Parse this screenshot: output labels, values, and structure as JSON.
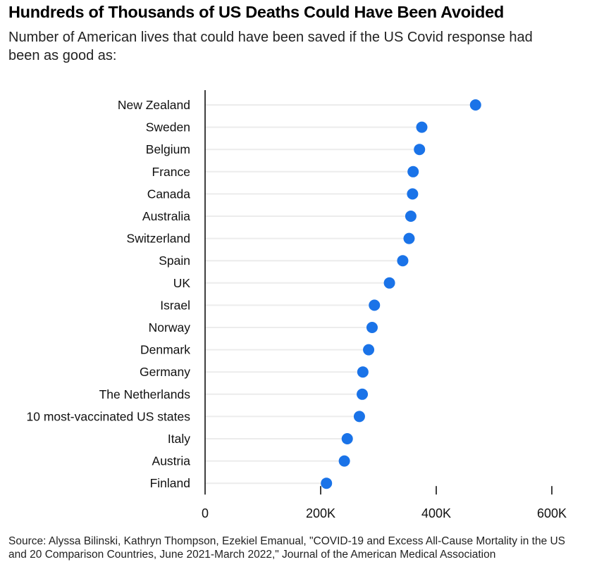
{
  "title": "Hundreds of Thousands of US Deaths Could Have Been Avoided",
  "subtitle": "Number of American lives that could have been saved if the US Covid response had been as good as:",
  "source": "Source: Alyssa Bilinski, Kathryn Thompson, Ezekiel Emanual, \"COVID-19 and Excess All-Cause Mortality in the US and 20 Comparison Countries, June 2021-March 2022,\" Journal of the American Medical Association",
  "colors": {
    "dot": "#1a73e8",
    "gridline": "#ececec",
    "axis": "#000000"
  },
  "chart_data": {
    "type": "scatter",
    "orientation": "horizontal-dot",
    "title": "Hundreds of Thousands of US Deaths Could Have Been Avoided",
    "xlabel": "",
    "ylabel": "",
    "xlim": [
      0,
      600000
    ],
    "x_ticks": [
      0,
      200000,
      400000,
      600000
    ],
    "x_tick_labels": [
      "0",
      "200K",
      "400K",
      "600K"
    ],
    "categories": [
      "New Zealand",
      "Sweden",
      "Belgium",
      "France",
      "Canada",
      "Australia",
      "Switzerland",
      "Spain",
      "UK",
      "Israel",
      "Norway",
      "Denmark",
      "Germany",
      "The Netherlands",
      "10 most-vaccinated US states",
      "Italy",
      "Austria",
      "Finland"
    ],
    "values": [
      468000,
      375000,
      371000,
      360000,
      359000,
      356000,
      353000,
      342000,
      319000,
      293000,
      289000,
      283000,
      273000,
      272000,
      267000,
      246000,
      241000,
      210000
    ]
  }
}
